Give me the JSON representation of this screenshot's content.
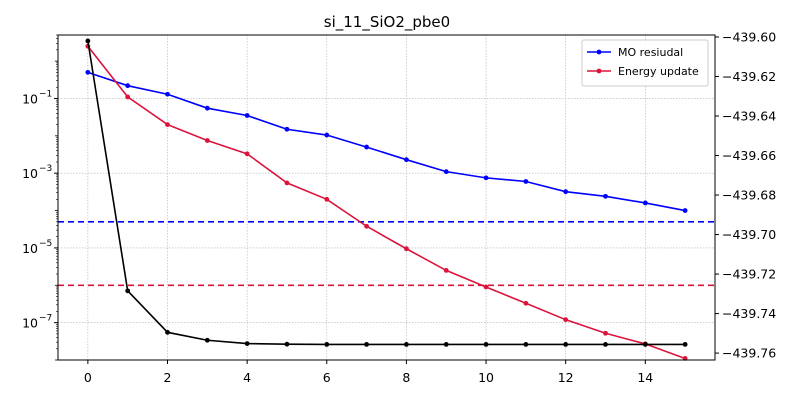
{
  "chart_data": {
    "type": "line",
    "title": "si_11_SiO2_pbe0",
    "x": [
      0,
      1,
      2,
      3,
      4,
      5,
      6,
      7,
      8,
      9,
      10,
      11,
      12,
      13,
      14,
      15
    ],
    "x_ticks": [
      0,
      2,
      4,
      6,
      8,
      10,
      12,
      14
    ],
    "x_tick_labels": [
      "0",
      "2",
      "4",
      "6",
      "8",
      "10",
      "12",
      "14"
    ],
    "xlim": [
      -0.75,
      15.75
    ],
    "left_axis": {
      "scale": "log",
      "ylim": [
        1e-08,
        5.0
      ],
      "ticks": [
        0.1,
        0.001,
        1e-05,
        1e-07
      ],
      "tick_exponents": [
        "−1",
        "−3",
        "−5",
        "−7"
      ]
    },
    "right_axis": {
      "scale": "linear",
      "ylim": [
        -439.7635,
        -439.599
      ],
      "ticks": [
        -439.6,
        -439.62,
        -439.64,
        -439.66,
        -439.68,
        -439.7,
        -439.72,
        -439.74,
        -439.76
      ],
      "tick_labels": [
        "−439.60",
        "−439.62",
        "−439.64",
        "−439.66",
        "−439.68",
        "−439.70",
        "−439.72",
        "−439.74",
        "−439.76"
      ]
    },
    "series": [
      {
        "name": "MO resiudal",
        "axis": "left",
        "color": "#0000ff",
        "values": [
          0.5,
          0.22,
          0.13,
          0.055,
          0.035,
          0.015,
          0.0105,
          0.005,
          0.0023,
          0.0011,
          0.00075,
          0.0006,
          0.00032,
          0.00024,
          0.00016,
          0.0001
        ]
      },
      {
        "name": "Energy update",
        "axis": "left",
        "color": "#dc143c",
        "values": [
          2.5,
          0.11,
          0.02,
          0.0075,
          0.0033,
          0.00055,
          0.0002,
          3.8e-05,
          9.5e-06,
          2.5e-06,
          9e-07,
          3.3e-07,
          1.2e-07,
          5.2e-08,
          2.7e-08,
          1.1e-08
        ]
      },
      {
        "axis": "right",
        "color": "#000000",
        "values": [
          -439.602,
          -439.7285,
          -439.7495,
          -439.7535,
          -439.7552,
          -439.7555,
          -439.7556,
          -439.7556,
          -439.7556,
          -439.7556,
          -439.7556,
          -439.7556,
          -439.7556,
          -439.7556,
          -439.7556,
          -439.7556
        ]
      }
    ],
    "hlines": [
      {
        "axis": "left",
        "y": 5e-05,
        "color": "#0000ff",
        "style": "dashed"
      },
      {
        "axis": "left",
        "y": 1e-06,
        "color": "#dc143c",
        "style": "dashed"
      }
    ],
    "grid": true,
    "legend_placement": "top-right"
  }
}
